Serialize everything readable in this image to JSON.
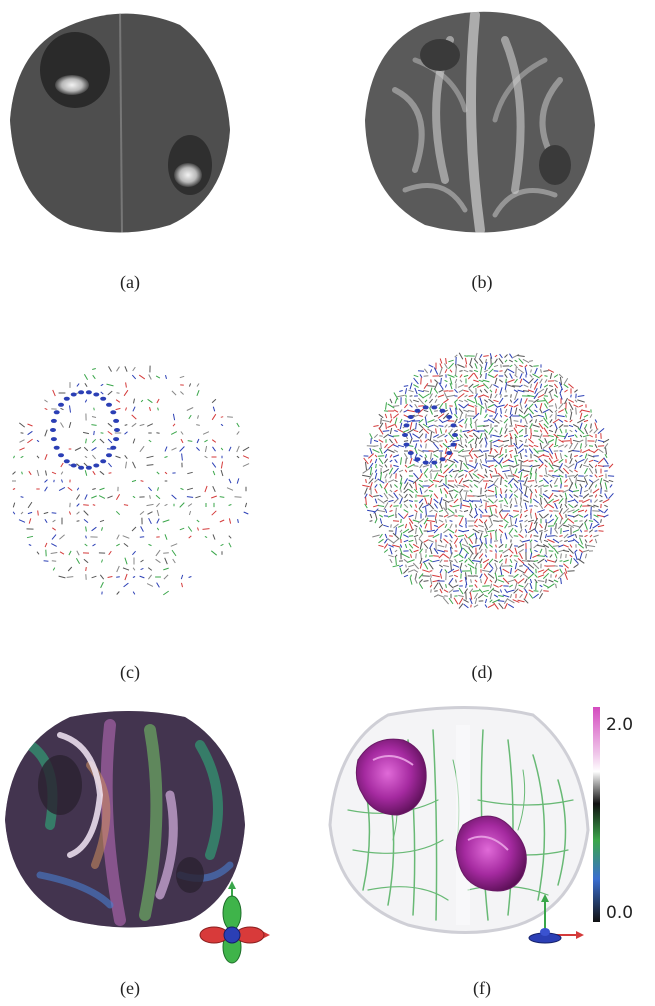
{
  "figure": {
    "panels": [
      {
        "id": "a",
        "caption": "(a)",
        "style": "grayscale-tumor"
      },
      {
        "id": "b",
        "caption": "(b)",
        "style": "grayscale-fa"
      },
      {
        "id": "c",
        "caption": "(c)",
        "style": "glyph-sparse"
      },
      {
        "id": "d",
        "caption": "(d)",
        "style": "glyph-dense"
      },
      {
        "id": "e",
        "caption": "(e)",
        "style": "color-fa"
      },
      {
        "id": "f",
        "caption": "(f)",
        "style": "volume-render"
      }
    ],
    "colorbar": {
      "max_label": "2.0",
      "min_label": "0.0",
      "stops": [
        "#d44bbf",
        "#f0c8ea",
        "#ffffff",
        "#111111",
        "#3aa64a",
        "#3a6ed0",
        "#111111"
      ]
    },
    "colors": {
      "glyph_red": "#d43a3a",
      "glyph_green": "#3aa64a",
      "glyph_blue": "#2b3fb5",
      "tumor_magenta": "#a52aa0"
    }
  }
}
